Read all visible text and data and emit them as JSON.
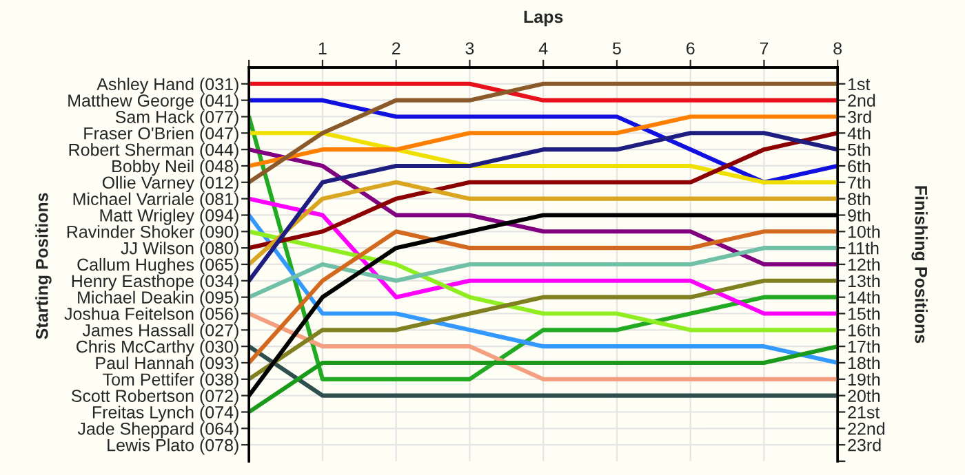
{
  "chart_data": {
    "type": "line",
    "xlabel": "Laps",
    "annotations": [
      "Starting Positions"
    ],
    "y2label": "Finishing Positions",
    "x": [
      0,
      1,
      2,
      3,
      4,
      5,
      6,
      7,
      8
    ],
    "xlim": [
      0,
      8
    ],
    "xticks": [
      {
        "value": 0,
        "label": null
      },
      1,
      2,
      3,
      4,
      5,
      6,
      7,
      8
    ],
    "y_categories": [
      "Ashley Hand (031)",
      "Matthew George (041)",
      "Sam Hack (077)",
      "Fraser O'Brien (047)",
      "Robert Sherman (044)",
      "Bobby Neil (048)",
      "Ollie Varney (012)",
      "Michael Varriale (081)",
      "Matt Wrigley (094)",
      "Ravinder Shoker (090)",
      "JJ Wilson (080)",
      "Callum Hughes (065)",
      "Henry Easthope (034)",
      "Michael Deakin (095)",
      "Joshua Feitelson (056)",
      "James Hassall (027)",
      "Chris McCarthy (030)",
      "Paul Hannah (093)",
      "Tom Pettifer (038)",
      "Scott Robertson (072)",
      "Freitas Lynch (074)",
      "Jade Sheppard (064)",
      "Lewis Plato (078)"
    ],
    "y2lim": [
      24,
      0
    ],
    "y2ticks": [
      {
        "value": 1,
        "label": "1st"
      },
      {
        "value": 2,
        "label": "2nd"
      },
      {
        "value": 3,
        "label": "3rd"
      },
      {
        "value": 4,
        "label": "4th"
      },
      {
        "value": 5,
        "label": "5th"
      },
      {
        "value": 6,
        "label": "6th"
      },
      {
        "value": 7,
        "label": "7th"
      },
      {
        "value": 8,
        "label": "8th"
      },
      {
        "value": 9,
        "label": "9th"
      },
      {
        "value": 10,
        "label": "10th"
      },
      {
        "value": 11,
        "label": "11th"
      },
      {
        "value": 12,
        "label": "12th"
      },
      {
        "value": 13,
        "label": "13th"
      },
      {
        "value": 14,
        "label": "14th"
      },
      {
        "value": 15,
        "label": "15th"
      },
      {
        "value": 16,
        "label": "16th"
      },
      {
        "value": 17,
        "label": "17th"
      },
      {
        "value": 18,
        "label": "18th"
      },
      {
        "value": 19,
        "label": "19th"
      },
      {
        "value": 20,
        "label": "20th"
      },
      {
        "value": 21,
        "label": "21st"
      },
      {
        "value": 22,
        "label": "22nd"
      },
      {
        "value": 23,
        "label": "23rd"
      },
      {
        "value": 24,
        "label": null
      }
    ],
    "grid": true,
    "series": [
      {
        "axis": "y2",
        "color": "#e8101a",
        "values": [
          1,
          1,
          1,
          1,
          2,
          2,
          2,
          2,
          2
        ]
      },
      {
        "axis": "y2",
        "color": "#1010e0",
        "values": [
          2,
          2,
          3,
          3,
          3,
          3,
          5,
          7,
          6
        ]
      },
      {
        "axis": "y2",
        "color": "#22aa22",
        "values": [
          3,
          19,
          19,
          19,
          16,
          16,
          15,
          14,
          14
        ]
      },
      {
        "axis": "y2",
        "color": "#f0e000",
        "values": [
          4,
          4,
          5,
          6,
          6,
          6,
          6,
          7,
          7
        ]
      },
      {
        "axis": "y2",
        "color": "#800080",
        "values": [
          5,
          6,
          9,
          9,
          10,
          10,
          10,
          12,
          12
        ]
      },
      {
        "axis": "y2",
        "color": "#ff8000",
        "values": [
          6,
          5,
          5,
          4,
          4,
          4,
          3,
          3,
          3
        ]
      },
      {
        "axis": "y2",
        "color": "#8b5a2b",
        "values": [
          7,
          4,
          2,
          2,
          1,
          1,
          1,
          1,
          1
        ]
      },
      {
        "axis": "y2",
        "color": "#ff00ff",
        "values": [
          8,
          9,
          14,
          13,
          13,
          13,
          13,
          15,
          15
        ]
      },
      {
        "axis": "y2",
        "color": "#3399ff",
        "values": [
          9,
          15,
          15,
          16,
          17,
          17,
          17,
          17,
          18
        ]
      },
      {
        "axis": "y2",
        "color": "#90ee20",
        "values": [
          10,
          11,
          12,
          14,
          15,
          15,
          16,
          16,
          16
        ]
      },
      {
        "axis": "y2",
        "color": "#8b0000",
        "values": [
          11,
          10,
          8,
          7,
          7,
          7,
          7,
          5,
          4
        ]
      },
      {
        "axis": "y2",
        "color": "#daa520",
        "values": [
          12,
          8,
          7,
          8,
          8,
          8,
          8,
          8,
          8
        ]
      },
      {
        "axis": "y2",
        "color": "#1e1e80",
        "values": [
          13,
          7,
          6,
          6,
          5,
          5,
          4,
          4,
          5
        ]
      },
      {
        "axis": "y2",
        "color": "#70c0a8",
        "values": [
          14,
          12,
          13,
          12,
          12,
          12,
          12,
          11,
          11
        ]
      },
      {
        "axis": "y2",
        "color": "#f4a080",
        "values": [
          15,
          17,
          17,
          17,
          19,
          19,
          19,
          19,
          19
        ]
      },
      {
        "axis": "y2",
        "color": "#2f4f4f",
        "values": [
          17,
          20,
          20,
          20,
          20,
          20,
          20,
          20,
          20
        ]
      },
      {
        "axis": "y2",
        "color": "#d2691e",
        "values": [
          18,
          13,
          10,
          11,
          11,
          11,
          11,
          10,
          10
        ]
      },
      {
        "axis": "y2",
        "color": "#808020",
        "values": [
          19,
          16,
          16,
          15,
          14,
          14,
          14,
          13,
          13
        ]
      },
      {
        "axis": "y2",
        "color": "#000000",
        "values": [
          20,
          14,
          11,
          10,
          9,
          9,
          9,
          9,
          9
        ]
      },
      {
        "axis": "y2",
        "color": "#1a9a1a",
        "values": [
          21,
          18,
          18,
          18,
          18,
          18,
          18,
          18,
          17
        ]
      }
    ]
  }
}
